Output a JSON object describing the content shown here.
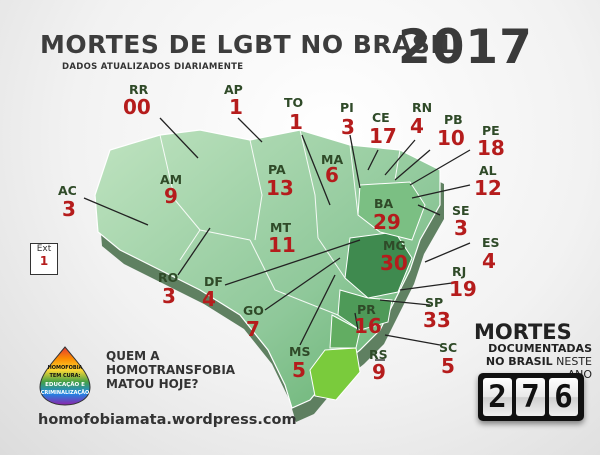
{
  "header": {
    "title": "MORTES DE LGBT NO BRASIL",
    "year": "2017",
    "subtitle": "DADOS ATUALIZADOS DIARIAMENTE"
  },
  "states": [
    {
      "abbr": "RR",
      "count": "00"
    },
    {
      "abbr": "AP",
      "count": "1"
    },
    {
      "abbr": "TO",
      "count": "1"
    },
    {
      "abbr": "PI",
      "count": "3"
    },
    {
      "abbr": "CE",
      "count": "17"
    },
    {
      "abbr": "RN",
      "count": "4"
    },
    {
      "abbr": "PB",
      "count": "10"
    },
    {
      "abbr": "PE",
      "count": "18"
    },
    {
      "abbr": "AL",
      "count": "12"
    },
    {
      "abbr": "AC",
      "count": "3"
    },
    {
      "abbr": "AM",
      "count": "9"
    },
    {
      "abbr": "PA",
      "count": "13"
    },
    {
      "abbr": "MA",
      "count": "6"
    },
    {
      "abbr": "BA",
      "count": "29"
    },
    {
      "abbr": "SE",
      "count": "3"
    },
    {
      "abbr": "MT",
      "count": "11"
    },
    {
      "abbr": "ES",
      "count": "4"
    },
    {
      "abbr": "MG",
      "count": "30"
    },
    {
      "abbr": "RO",
      "count": "3"
    },
    {
      "abbr": "DF",
      "count": "4"
    },
    {
      "abbr": "RJ",
      "count": "19"
    },
    {
      "abbr": "GO",
      "count": "7"
    },
    {
      "abbr": "SP",
      "count": "33"
    },
    {
      "abbr": "PR",
      "count": "16"
    },
    {
      "abbr": "MS",
      "count": "5"
    },
    {
      "abbr": "SC",
      "count": "5"
    },
    {
      "abbr": "RS",
      "count": "9"
    }
  ],
  "ext": {
    "label": "Ext",
    "count": "1"
  },
  "badge": {
    "lines": [
      "HOMOFOBIA",
      "TEM CURA:",
      "EDUCAÇÃO E",
      "CRIMINALIZAÇÃO"
    ]
  },
  "question": {
    "line1": "QUEM A",
    "line2": "HOMOTRANSFOBIA",
    "line3": "MATOU HOJE?"
  },
  "website": "homofobiamata.wordpress.com",
  "totals": {
    "title": "MORTES",
    "line1": "DOCUMENTADAS",
    "line2_bold": "NO BRASIL",
    "line2_rest": " NESTE ANO",
    "digits": [
      "2",
      "7",
      "6"
    ]
  },
  "colors": {
    "count": "#b51c1c",
    "label": "#2f4a28",
    "map_light": "#a8d6a6",
    "map_dark": "#3f8a4f",
    "rs": "#7acb3c"
  }
}
